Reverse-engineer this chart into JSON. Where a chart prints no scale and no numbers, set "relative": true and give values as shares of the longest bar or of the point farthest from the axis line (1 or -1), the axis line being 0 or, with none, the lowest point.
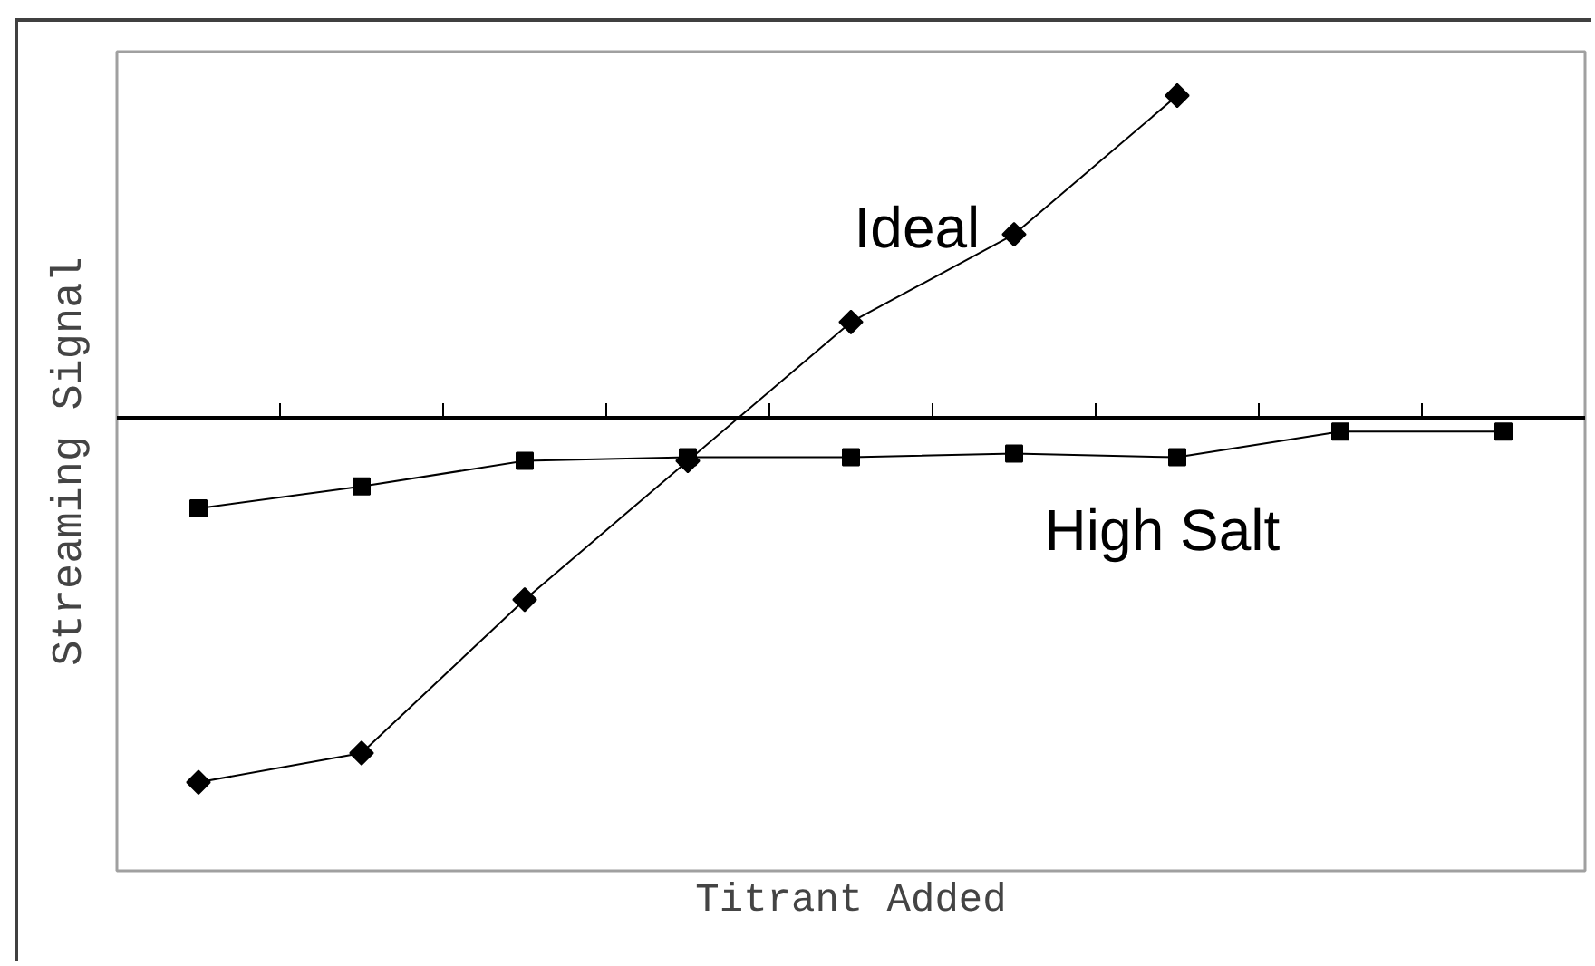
{
  "chart_data": {
    "type": "line",
    "xlabel": "Titrant Added",
    "ylabel": "Streaming Signal",
    "relative": true,
    "categories": [
      null,
      null,
      null,
      null,
      null,
      null,
      null,
      null,
      null
    ],
    "series": [
      {
        "name": "Ideal",
        "color": "#000000",
        "marker": "diamond",
        "values": [
          -1,
          -0.92,
          -0.5,
          -0.12,
          0.26,
          0.5,
          0.88,
          null,
          null
        ]
      },
      {
        "name": "High Salt",
        "color": "#000000",
        "marker": "square",
        "values": [
          -0.25,
          -0.19,
          -0.12,
          -0.11,
          -0.11,
          -0.1,
          -0.11,
          -0.04,
          -0.04
        ]
      }
    ]
  }
}
